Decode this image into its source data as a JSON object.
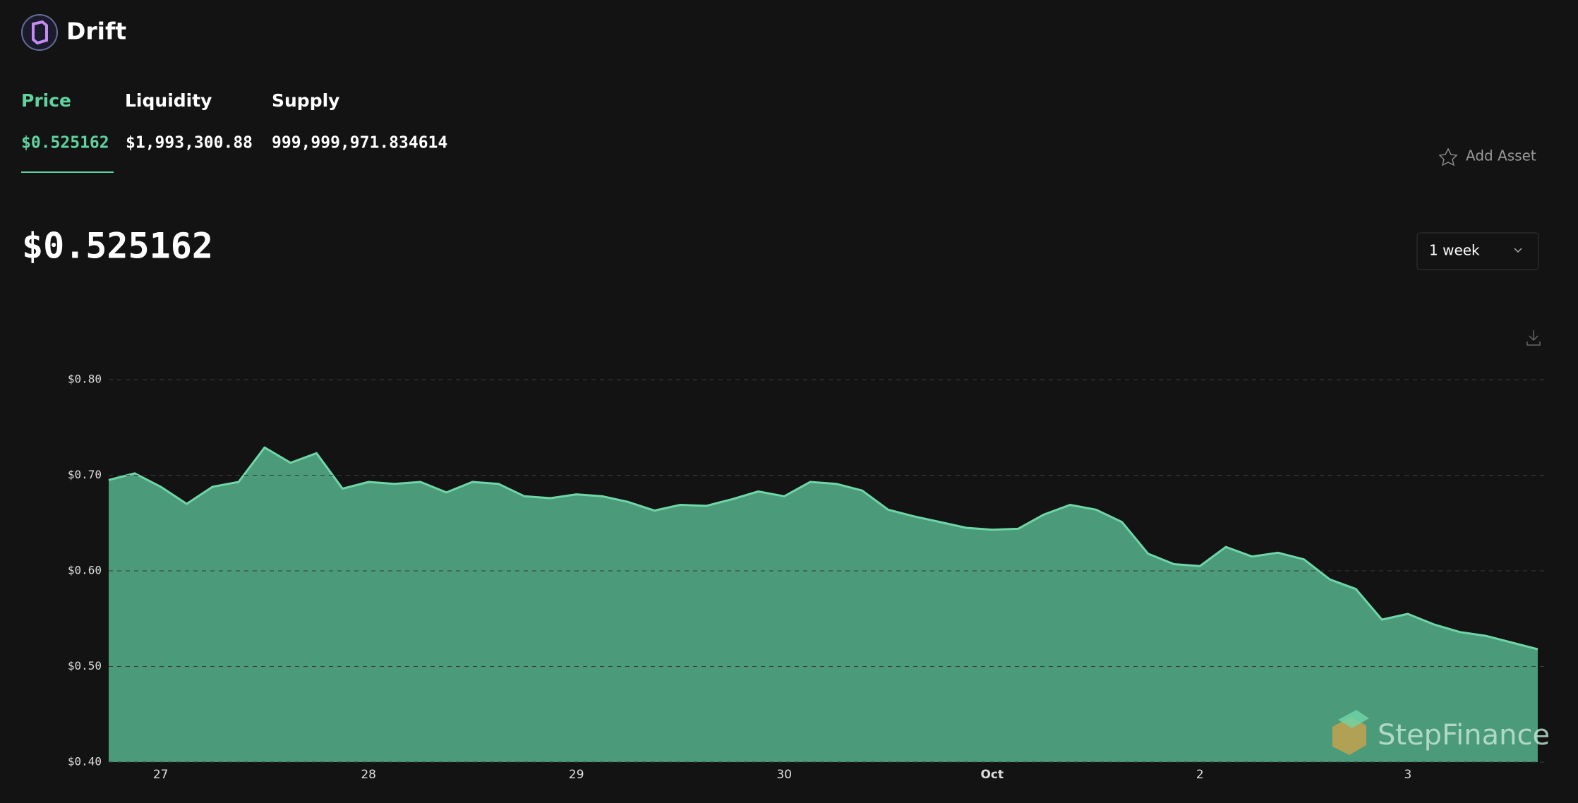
{
  "header": {
    "brand": "Drift"
  },
  "tabs": [
    {
      "label": "Price",
      "value": "$0.525162"
    },
    {
      "label": "Liquidity",
      "value": "$1,993,300.88"
    },
    {
      "label": "Supply",
      "value": "999,999,971.834614"
    }
  ],
  "add_asset": "Add Asset",
  "current_price": "$0.525162",
  "timeframe": "1 week",
  "watermark": "StepFinance",
  "chart_data": {
    "type": "area",
    "categories": [
      null,
      null,
      "27",
      null,
      null,
      null,
      null,
      null,
      null,
      null,
      "28",
      null,
      null,
      null,
      null,
      null,
      null,
      null,
      "29",
      null,
      null,
      null,
      null,
      null,
      null,
      null,
      "30",
      null,
      null,
      null,
      null,
      null,
      null,
      null,
      "Oct",
      null,
      null,
      null,
      null,
      null,
      null,
      null,
      "2",
      null,
      null,
      null,
      null,
      null,
      null,
      null,
      "3",
      null,
      null,
      null,
      null,
      null
    ],
    "values": [
      0.695,
      0.702,
      0.688,
      0.67,
      0.688,
      0.693,
      0.729,
      0.713,
      0.723,
      0.686,
      0.693,
      0.691,
      0.693,
      0.682,
      0.693,
      0.691,
      0.678,
      0.676,
      0.68,
      0.678,
      0.672,
      0.663,
      0.669,
      0.668,
      0.675,
      0.683,
      0.678,
      0.693,
      0.691,
      0.684,
      0.664,
      0.657,
      0.651,
      0.645,
      0.643,
      0.644,
      0.659,
      0.669,
      0.664,
      0.651,
      0.618,
      0.607,
      0.605,
      0.625,
      0.615,
      0.619,
      0.612,
      0.591,
      0.581,
      0.549,
      0.555,
      0.544,
      0.536,
      0.532,
      0.525,
      0.518
    ],
    "color": "#4b9a7a",
    "line_color": "#6fd6a8",
    "ylim": [
      0.4,
      0.8
    ],
    "yticks": [
      {
        "value": 0.4,
        "label": "$0.40"
      },
      {
        "value": 0.5,
        "label": "$0.50"
      },
      {
        "value": 0.6,
        "label": "$0.60"
      },
      {
        "value": 0.7,
        "label": "$0.70"
      },
      {
        "value": 0.8,
        "label": "$0.80"
      }
    ],
    "grid": true
  }
}
